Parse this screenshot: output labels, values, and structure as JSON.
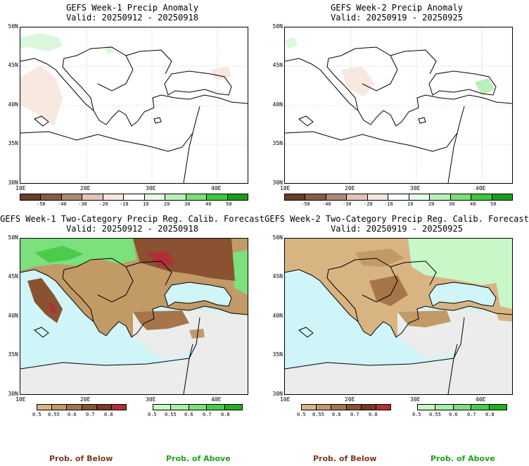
{
  "panels": [
    {
      "title": "GEFS Week-1 Precip Anomaly",
      "valid": "Valid: 20250912 - 20250918"
    },
    {
      "title": "GEFS Week-2 Precip Anomaly",
      "valid": "Valid: 20250919 - 20250925"
    },
    {
      "title": "GEFS Week-1 Two-Category Precip Reg. Calib. Forecast",
      "valid": "Valid: 20250912 - 20250918"
    },
    {
      "title": "GEFS Week-2 Two-Category Precip Reg. Calib. Forecast",
      "valid": "Valid: 20250919 - 20250925"
    }
  ],
  "lat_labels": [
    "50N",
    "45N",
    "40N",
    "35N",
    "30N"
  ],
  "lon_labels": [
    "10E",
    "20E",
    "30E",
    "40E"
  ],
  "anomaly_colorbar": {
    "ticks": [
      "-50",
      "-40",
      "-30",
      "-20",
      "-10",
      "10",
      "20",
      "30",
      "40",
      "50"
    ],
    "colors": [
      "#6b3a2a",
      "#8a5a48",
      "#b08878",
      "#e2c4b8",
      "#f5e6de",
      "#ffffff",
      "#e6fbe6",
      "#b8f0b8",
      "#79e079",
      "#3cc83c",
      "#1a9e1a"
    ]
  },
  "below_colorbar": {
    "ticks": [
      "0.5",
      "0.55",
      "0.6",
      "0.7",
      "0.8"
    ],
    "colors": [
      "#d8b483",
      "#c29a66",
      "#a6764a",
      "#8a5230",
      "#7a3a20",
      "#b0303a"
    ]
  },
  "above_colorbar": {
    "ticks": [
      "0.5",
      "0.55",
      "0.6",
      "0.7",
      "0.8"
    ],
    "colors": [
      "#c8f7c8",
      "#a6f0a6",
      "#7ce07c",
      "#4ccc4c",
      "#22b022"
    ]
  },
  "footer": {
    "below_label": "Prob. of Below",
    "above_label": "Prob. of Above"
  },
  "colors": {
    "sea": "#cff5f8",
    "land_nodata": "#ececec",
    "below_label": "#7a3a20",
    "above_label": "#1fa01f"
  }
}
